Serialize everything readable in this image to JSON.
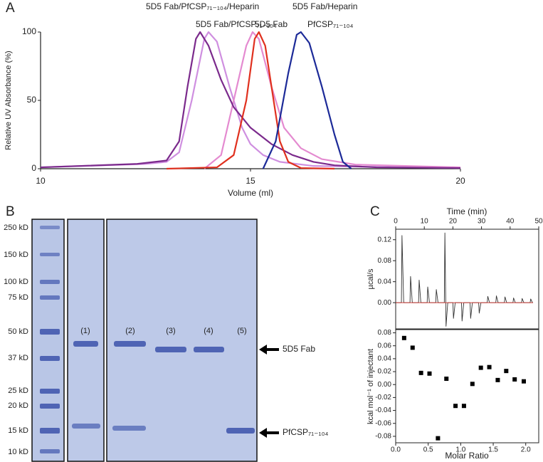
{
  "chart_data": [
    {
      "type": "line",
      "panel": "A",
      "xlabel": "Volume (ml)",
      "ylabel": "Relative UV Absorbance (%)",
      "xlim": [
        10,
        20
      ],
      "ylim": [
        0,
        100
      ],
      "xticks": [
        10,
        15,
        20
      ],
      "yticks": [
        0,
        50,
        100
      ],
      "series": [
        {
          "name": "5D5 Fab/PfCSP₇₁₋₁₀₄/Heparin",
          "color": "#cf8fe0",
          "x": [
            10,
            12,
            12.5,
            13,
            13.3,
            13.6,
            13.9,
            14.0,
            14.2,
            14.5,
            14.8,
            15.0,
            15.3,
            15.7,
            16.5,
            20
          ],
          "values": [
            1,
            3,
            3.5,
            5,
            12,
            50,
            95,
            100,
            93,
            60,
            30,
            18,
            10,
            5,
            2,
            0.5
          ]
        },
        {
          "name": "5D5 Fab/Heparin",
          "color": "#e48ad0",
          "x": [
            13.9,
            14.3,
            14.6,
            14.9,
            15.05,
            15.2,
            15.5,
            15.8,
            16.2,
            16.7,
            17.5,
            20
          ],
          "values": [
            0,
            10,
            50,
            90,
            100,
            95,
            60,
            30,
            15,
            7,
            3,
            1
          ]
        },
        {
          "name": "5D5 Fab/PfCSP₇₁₋₁₀₄",
          "color": "#7b2a8c",
          "x": [
            10,
            12.3,
            13,
            13.3,
            13.5,
            13.7,
            13.8,
            14.0,
            14.3,
            14.6,
            15.0,
            15.5,
            16,
            16.5,
            17,
            18,
            20
          ],
          "values": [
            1,
            3.5,
            6,
            20,
            60,
            95,
            100,
            90,
            65,
            45,
            30,
            18,
            10,
            5,
            2.5,
            1,
            0.5
          ]
        },
        {
          "name": "5D5 Fab",
          "color": "#e0301e",
          "x": [
            13,
            14.2,
            14.6,
            14.9,
            15.1,
            15.2,
            15.35,
            15.5,
            15.7,
            15.9,
            16.2,
            17
          ],
          "values": [
            0,
            1,
            10,
            50,
            95,
            100,
            90,
            60,
            20,
            5,
            0.5,
            0
          ]
        },
        {
          "name": "PfCSP₇₁₋₁₀₄",
          "color": "#1c2a98",
          "x": [
            15.3,
            15.6,
            15.9,
            16.1,
            16.2,
            16.4,
            16.7,
            17.0,
            17.2,
            17.4
          ],
          "values": [
            0,
            20,
            70,
            98,
            100,
            92,
            60,
            25,
            5,
            0
          ]
        }
      ]
    },
    {
      "type": "line",
      "panel": "C",
      "xlabel": "Time (min)",
      "ylabel": "µcal/s",
      "xlim": [
        0,
        50
      ],
      "ylim": [
        -0.05,
        0.14
      ],
      "xticks": [
        0,
        10,
        20,
        30,
        40,
        50
      ],
      "yticks": [
        {
          "value": 0,
          "label": "0.00"
        },
        0.04,
        0.08,
        0.12
      ],
      "series": [
        {
          "color": "#333333",
          "x": [
            0,
            2,
            2.2,
            2.8,
            5,
            5.2,
            5.8,
            8,
            8.2,
            8.8,
            11,
            11.2,
            11.8,
            14,
            14.2,
            14.8,
            17,
            17.2,
            17.6,
            18.2,
            20,
            20.2,
            20.8,
            23,
            23.2,
            23.8,
            26,
            26.2,
            26.8,
            29,
            29.2,
            29.8,
            32,
            32.2,
            32.8,
            35,
            35.2,
            35.8,
            38,
            38.2,
            38.8,
            41,
            41.2,
            41.8,
            44,
            44.2,
            44.8,
            47,
            47.2,
            47.8,
            48
          ],
          "values": [
            0,
            0,
            0.128,
            0,
            0,
            0.05,
            0,
            0,
            0.043,
            0,
            0,
            0.03,
            0,
            0,
            0.025,
            0,
            0,
            0.133,
            -0.045,
            0,
            0,
            -0.03,
            0,
            0,
            -0.035,
            0,
            0,
            -0.03,
            0,
            0,
            -0.02,
            0,
            0,
            0.012,
            0,
            0,
            0.013,
            0,
            0,
            0.011,
            0,
            0,
            0.009,
            0,
            0,
            0.008,
            0,
            0,
            0.007,
            0,
            0
          ]
        },
        {
          "color": "#d0302a",
          "x": [
            0,
            48
          ],
          "values": [
            0,
            0
          ]
        }
      ]
    },
    {
      "type": "scatter",
      "xlabel": "Molar Ratio",
      "ylabel": "kcal mol⁻¹ of injectant",
      "xlim": [
        0,
        2.2
      ],
      "ylim": [
        -0.09,
        0.085
      ],
      "xticks": [
        {
          "value": 0,
          "label": "0.0"
        },
        0.5,
        {
          "value": 1,
          "label": "1.0"
        },
        1.5,
        {
          "value": 2,
          "label": "2.0"
        }
      ],
      "yticks": [
        -0.08,
        -0.06,
        -0.04,
        -0.02,
        {
          "value": 0,
          "label": "0.00"
        },
        0.02,
        0.04,
        0.06,
        0.08
      ],
      "color": "#000000",
      "x": [
        0.13,
        0.26,
        0.39,
        0.52,
        0.65,
        0.78,
        0.92,
        1.05,
        1.18,
        1.31,
        1.44,
        1.57,
        1.7,
        1.83,
        1.97
      ],
      "values": [
        0.072,
        0.057,
        0.018,
        0.017,
        -0.083,
        0.009,
        -0.033,
        -0.033,
        0.001,
        0.026,
        0.027,
        0.007,
        0.021,
        0.008,
        0.005
      ]
    }
  ],
  "gel": {
    "panel": "B",
    "markers": [
      "250 kD",
      "150 kD",
      "100 kD",
      "75 kD",
      "50 kD",
      "37 kD",
      "25 kD",
      "20 kD",
      "15 kD",
      "10 kD"
    ],
    "lanes": [
      "(1)",
      "(2)",
      "(3)",
      "(4)",
      "(5)"
    ],
    "annotations": [
      "5D5 Fab",
      "PfCSP₇₁₋₁₀₄"
    ]
  }
}
